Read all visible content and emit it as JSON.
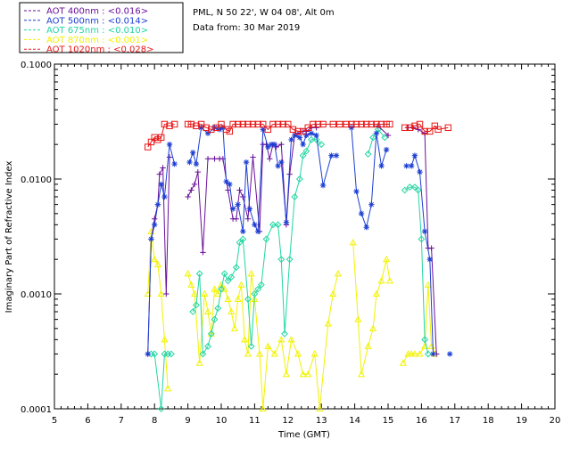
{
  "header": {
    "location": "PML, N 50 22', W 04 08', Alt 0m",
    "date": "Data from: 30 Mar 2019"
  },
  "chart_data": {
    "type": "line",
    "xlabel": "Time (GMT)",
    "ylabel": "Imaginary Part of Refractive Index",
    "xlim": [
      5,
      20
    ],
    "ylim": [
      0.0001,
      0.1
    ],
    "yscale": "log",
    "xticks": [
      "5",
      "6",
      "7",
      "8",
      "9",
      "10",
      "11",
      "12",
      "13",
      "14",
      "15",
      "16",
      "17",
      "18",
      "19",
      "20"
    ],
    "yticks": [
      "0.0001",
      "0.0010",
      "0.0100",
      "0.1000"
    ],
    "legend_position": "top-left outside plot",
    "series": [
      {
        "name": "AOT  400nm : <0.016>",
        "color": "#6a0f9a",
        "marker": "plus",
        "points": [
          [
            7.8,
            0.0003
          ],
          [
            7.9,
            0.003
          ],
          [
            8.0,
            0.0045
          ],
          [
            8.1,
            0.006
          ],
          [
            8.15,
            0.011
          ],
          [
            8.25,
            0.0125
          ],
          [
            8.35,
            0.001
          ],
          [
            8.45,
            0.0155
          ],
          [
            9.0,
            0.007
          ],
          [
            9.1,
            0.008
          ],
          [
            9.2,
            0.009
          ],
          [
            9.3,
            0.0115
          ],
          [
            9.45,
            0.0023
          ],
          [
            9.6,
            0.015
          ],
          [
            9.8,
            0.015
          ],
          [
            9.95,
            0.015
          ],
          [
            10.05,
            0.015
          ],
          [
            10.2,
            0.008
          ],
          [
            10.35,
            0.0045
          ],
          [
            10.45,
            0.0045
          ],
          [
            10.55,
            0.008
          ],
          [
            10.65,
            0.007
          ],
          [
            10.8,
            0.0045
          ],
          [
            10.95,
            0.0155
          ],
          [
            11.15,
            0.0035
          ],
          [
            11.25,
            0.02
          ],
          [
            11.35,
            0.02
          ],
          [
            11.45,
            0.015
          ],
          [
            11.55,
            0.02
          ],
          [
            11.65,
            0.019
          ],
          [
            11.8,
            0.02
          ],
          [
            11.95,
            0.004
          ],
          [
            12.05,
            0.011
          ],
          [
            12.2,
            0.024
          ],
          [
            12.3,
            0.025
          ],
          [
            12.45,
            0.026
          ],
          [
            12.55,
            0.026
          ],
          [
            12.7,
            0.028
          ],
          [
            12.85,
            0.028
          ],
          [
            14.7,
            0.029
          ],
          [
            15.0,
            0.024
          ],
          [
            15.6,
            0.028
          ],
          [
            15.75,
            0.028
          ],
          [
            15.9,
            0.027
          ],
          [
            16.1,
            0.025
          ],
          [
            16.2,
            0.0025
          ],
          [
            16.3,
            0.0025
          ],
          [
            16.45,
            0.0003
          ]
        ]
      },
      {
        "name": "AOT  500nm : <0.014>",
        "color": "#1c3fd4",
        "marker": "asterisk",
        "points": [
          [
            7.8,
            0.0003
          ],
          [
            7.9,
            0.003
          ],
          [
            8.0,
            0.004
          ],
          [
            8.1,
            0.006
          ],
          [
            8.2,
            0.009
          ],
          [
            8.3,
            0.007
          ],
          [
            8.45,
            0.02
          ],
          [
            8.6,
            0.0135
          ],
          [
            9.05,
            0.014
          ],
          [
            9.15,
            0.017
          ],
          [
            9.25,
            0.0135
          ],
          [
            9.4,
            0.028
          ],
          [
            9.6,
            0.025
          ],
          [
            9.8,
            0.028
          ],
          [
            9.95,
            0.027
          ],
          [
            10.05,
            0.028
          ],
          [
            10.15,
            0.0095
          ],
          [
            10.25,
            0.009
          ],
          [
            10.35,
            0.0055
          ],
          [
            10.5,
            0.006
          ],
          [
            10.65,
            0.0035
          ],
          [
            10.75,
            0.014
          ],
          [
            10.85,
            0.0055
          ],
          [
            11.0,
            0.004
          ],
          [
            11.1,
            0.0035
          ],
          [
            11.25,
            0.027
          ],
          [
            11.4,
            0.019
          ],
          [
            11.5,
            0.02
          ],
          [
            11.6,
            0.02
          ],
          [
            11.7,
            0.013
          ],
          [
            11.8,
            0.014
          ],
          [
            11.95,
            0.0042
          ],
          [
            12.1,
            0.022
          ],
          [
            12.2,
            0.024
          ],
          [
            12.35,
            0.023
          ],
          [
            12.45,
            0.02
          ],
          [
            12.55,
            0.024
          ],
          [
            12.7,
            0.025
          ],
          [
            12.85,
            0.024
          ],
          [
            13.05,
            0.0088
          ],
          [
            13.3,
            0.016
          ],
          [
            13.45,
            0.016
          ],
          [
            13.9,
            0.028
          ],
          [
            14.05,
            0.0078
          ],
          [
            14.2,
            0.005
          ],
          [
            14.35,
            0.0038
          ],
          [
            14.5,
            0.006
          ],
          [
            14.65,
            0.025
          ],
          [
            14.8,
            0.013
          ],
          [
            14.95,
            0.018
          ],
          [
            15.55,
            0.013
          ],
          [
            15.7,
            0.013
          ],
          [
            15.8,
            0.016
          ],
          [
            15.95,
            0.0115
          ],
          [
            16.1,
            0.0035
          ],
          [
            16.25,
            0.002
          ],
          [
            16.35,
            0.0003
          ],
          [
            16.85,
            0.0003
          ]
        ]
      },
      {
        "name": "AOT  675nm : <0.010>",
        "color": "#22d6a2",
        "marker": "diamond",
        "points": [
          [
            7.9,
            0.0003
          ],
          [
            8.0,
            0.0003
          ],
          [
            8.2,
            0.0001
          ],
          [
            8.3,
            0.0003
          ],
          [
            8.4,
            0.0003
          ],
          [
            8.5,
            0.0003
          ],
          [
            9.15,
            0.0007
          ],
          [
            9.25,
            0.0008
          ],
          [
            9.35,
            0.0015
          ],
          [
            9.45,
            0.0003
          ],
          [
            9.6,
            0.00035
          ],
          [
            9.7,
            0.00045
          ],
          [
            9.8,
            0.0006
          ],
          [
            9.9,
            0.00075
          ],
          [
            10.0,
            0.0011
          ],
          [
            10.1,
            0.0015
          ],
          [
            10.2,
            0.0013
          ],
          [
            10.3,
            0.0014
          ],
          [
            10.45,
            0.0017
          ],
          [
            10.55,
            0.0028
          ],
          [
            10.65,
            0.003
          ],
          [
            10.8,
            0.0009
          ],
          [
            10.9,
            0.00035
          ],
          [
            11.0,
            0.001
          ],
          [
            11.1,
            0.0011
          ],
          [
            11.2,
            0.0012
          ],
          [
            11.35,
            0.003
          ],
          [
            11.55,
            0.004
          ],
          [
            11.7,
            0.004
          ],
          [
            11.8,
            0.002
          ],
          [
            11.9,
            0.00045
          ],
          [
            12.05,
            0.002
          ],
          [
            12.2,
            0.007
          ],
          [
            12.35,
            0.01
          ],
          [
            12.45,
            0.016
          ],
          [
            12.55,
            0.0175
          ],
          [
            12.7,
            0.022
          ],
          [
            12.85,
            0.022
          ],
          [
            13.0,
            0.02
          ],
          [
            14.4,
            0.0165
          ],
          [
            14.55,
            0.023
          ],
          [
            14.7,
            0.027
          ],
          [
            14.9,
            0.023
          ],
          [
            15.5,
            0.008
          ],
          [
            15.65,
            0.0085
          ],
          [
            15.8,
            0.0085
          ],
          [
            15.9,
            0.008
          ],
          [
            16.0,
            0.003
          ],
          [
            16.1,
            0.0004
          ],
          [
            16.2,
            0.0003
          ]
        ]
      },
      {
        "name": "AOT  870nm : <0.001>",
        "color": "#f2f200",
        "marker": "triangle",
        "points": [
          [
            7.8,
            0.001
          ],
          [
            7.9,
            0.0035
          ],
          [
            8.0,
            0.002
          ],
          [
            8.1,
            0.0018
          ],
          [
            8.2,
            0.001
          ],
          [
            8.3,
            0.0004
          ],
          [
            8.4,
            0.00015
          ],
          [
            9.0,
            0.0015
          ],
          [
            9.1,
            0.0012
          ],
          [
            9.2,
            0.001
          ],
          [
            9.35,
            0.00025
          ],
          [
            9.5,
            0.001
          ],
          [
            9.6,
            0.0007
          ],
          [
            9.7,
            0.00045
          ],
          [
            9.8,
            0.0011
          ],
          [
            9.9,
            0.001
          ],
          [
            10.0,
            0.0012
          ],
          [
            10.1,
            0.0011
          ],
          [
            10.2,
            0.0009
          ],
          [
            10.3,
            0.0007
          ],
          [
            10.4,
            0.0005
          ],
          [
            10.5,
            0.0009
          ],
          [
            10.6,
            0.0012
          ],
          [
            10.7,
            0.0004
          ],
          [
            10.8,
            0.0003
          ],
          [
            10.9,
            0.0015
          ],
          [
            11.0,
            0.0009
          ],
          [
            11.15,
            0.0003
          ],
          [
            11.25,
            0.0001
          ],
          [
            11.4,
            0.00035
          ],
          [
            11.6,
            0.0003
          ],
          [
            11.8,
            0.0004
          ],
          [
            11.95,
            0.0002
          ],
          [
            12.1,
            0.0004
          ],
          [
            12.3,
            0.0003
          ],
          [
            12.45,
            0.0002
          ],
          [
            12.6,
            0.0002
          ],
          [
            12.8,
            0.0003
          ],
          [
            12.95,
            0.0001
          ],
          [
            13.2,
            0.00055
          ],
          [
            13.35,
            0.001
          ],
          [
            13.5,
            0.0015
          ],
          [
            13.95,
            0.0028
          ],
          [
            14.1,
            0.0006
          ],
          [
            14.2,
            0.0002
          ],
          [
            14.4,
            0.00035
          ],
          [
            14.55,
            0.0005
          ],
          [
            14.65,
            0.001
          ],
          [
            14.8,
            0.0013
          ],
          [
            14.95,
            0.002
          ],
          [
            15.05,
            0.0013
          ],
          [
            15.45,
            0.00025
          ],
          [
            15.6,
            0.0003
          ],
          [
            15.7,
            0.0003
          ],
          [
            15.8,
            0.0003
          ],
          [
            15.95,
            0.0003
          ],
          [
            16.1,
            0.00035
          ],
          [
            16.2,
            0.0012
          ],
          [
            16.3,
            0.00035
          ],
          [
            16.4,
            0.0003
          ]
        ]
      },
      {
        "name": "AOT 1020nm : <0.028>",
        "color": "#e81818",
        "marker": "square",
        "points": [
          [
            7.8,
            0.019
          ],
          [
            7.9,
            0.021
          ],
          [
            8.0,
            0.023
          ],
          [
            8.1,
            0.022
          ],
          [
            8.2,
            0.023
          ],
          [
            8.3,
            0.03
          ],
          [
            8.45,
            0.029
          ],
          [
            8.6,
            0.03
          ],
          [
            9.0,
            0.03
          ],
          [
            9.1,
            0.03
          ],
          [
            9.25,
            0.029
          ],
          [
            9.4,
            0.03
          ],
          [
            9.55,
            0.028
          ],
          [
            9.7,
            0.027
          ],
          [
            9.85,
            0.028
          ],
          [
            10.0,
            0.03
          ],
          [
            10.15,
            0.027
          ],
          [
            10.25,
            0.026
          ],
          [
            10.35,
            0.03
          ],
          [
            10.5,
            0.03
          ],
          [
            10.65,
            0.03
          ],
          [
            10.8,
            0.03
          ],
          [
            10.95,
            0.03
          ],
          [
            11.1,
            0.03
          ],
          [
            11.25,
            0.03
          ],
          [
            11.4,
            0.027
          ],
          [
            11.55,
            0.03
          ],
          [
            11.7,
            0.03
          ],
          [
            11.85,
            0.03
          ],
          [
            12.0,
            0.03
          ],
          [
            12.15,
            0.027
          ],
          [
            12.3,
            0.026
          ],
          [
            12.45,
            0.026
          ],
          [
            12.6,
            0.028
          ],
          [
            12.75,
            0.03
          ],
          [
            12.9,
            0.03
          ],
          [
            13.05,
            0.03
          ],
          [
            13.35,
            0.03
          ],
          [
            13.55,
            0.03
          ],
          [
            13.75,
            0.03
          ],
          [
            13.9,
            0.03
          ],
          [
            14.05,
            0.03
          ],
          [
            14.2,
            0.03
          ],
          [
            14.35,
            0.03
          ],
          [
            14.5,
            0.03
          ],
          [
            14.65,
            0.03
          ],
          [
            14.8,
            0.03
          ],
          [
            14.95,
            0.03
          ],
          [
            15.05,
            0.03
          ],
          [
            15.5,
            0.028
          ],
          [
            15.65,
            0.028
          ],
          [
            15.8,
            0.029
          ],
          [
            15.95,
            0.03
          ],
          [
            16.1,
            0.026
          ],
          [
            16.25,
            0.026
          ],
          [
            16.4,
            0.029
          ],
          [
            16.5,
            0.027
          ],
          [
            16.8,
            0.028
          ]
        ]
      }
    ]
  }
}
